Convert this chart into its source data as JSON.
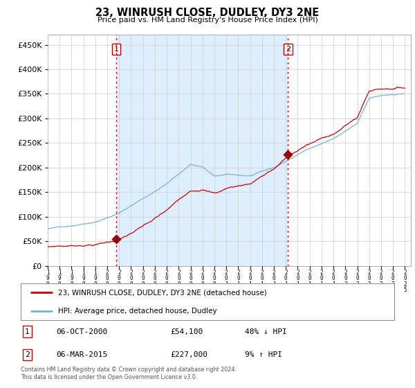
{
  "title": "23, WINRUSH CLOSE, DUDLEY, DY3 2NE",
  "subtitle": "Price paid vs. HM Land Registry's House Price Index (HPI)",
  "legend_line1": "23, WINRUSH CLOSE, DUDLEY, DY3 2NE (detached house)",
  "legend_line2": "HPI: Average price, detached house, Dudley",
  "sale1_label": "1",
  "sale1_date": "06-OCT-2000",
  "sale1_price": "£54,100",
  "sale1_hpi": "48% ↓ HPI",
  "sale1_year": 2000.75,
  "sale1_value": 54100,
  "sale2_label": "2",
  "sale2_date": "06-MAR-2015",
  "sale2_price": "£227,000",
  "sale2_hpi": "9% ↑ HPI",
  "sale2_year": 2015.17,
  "sale2_value": 227000,
  "vline_color": "#cc0000",
  "hpi_color": "#7ab0d4",
  "price_color": "#cc0000",
  "dot_color": "#990000",
  "shade_color": "#ddeeff",
  "footer": "Contains HM Land Registry data © Crown copyright and database right 2024.\nThis data is licensed under the Open Government Licence v3.0.",
  "ylim_min": 0,
  "ylim_max": 470000,
  "background_color": "#ffffff"
}
